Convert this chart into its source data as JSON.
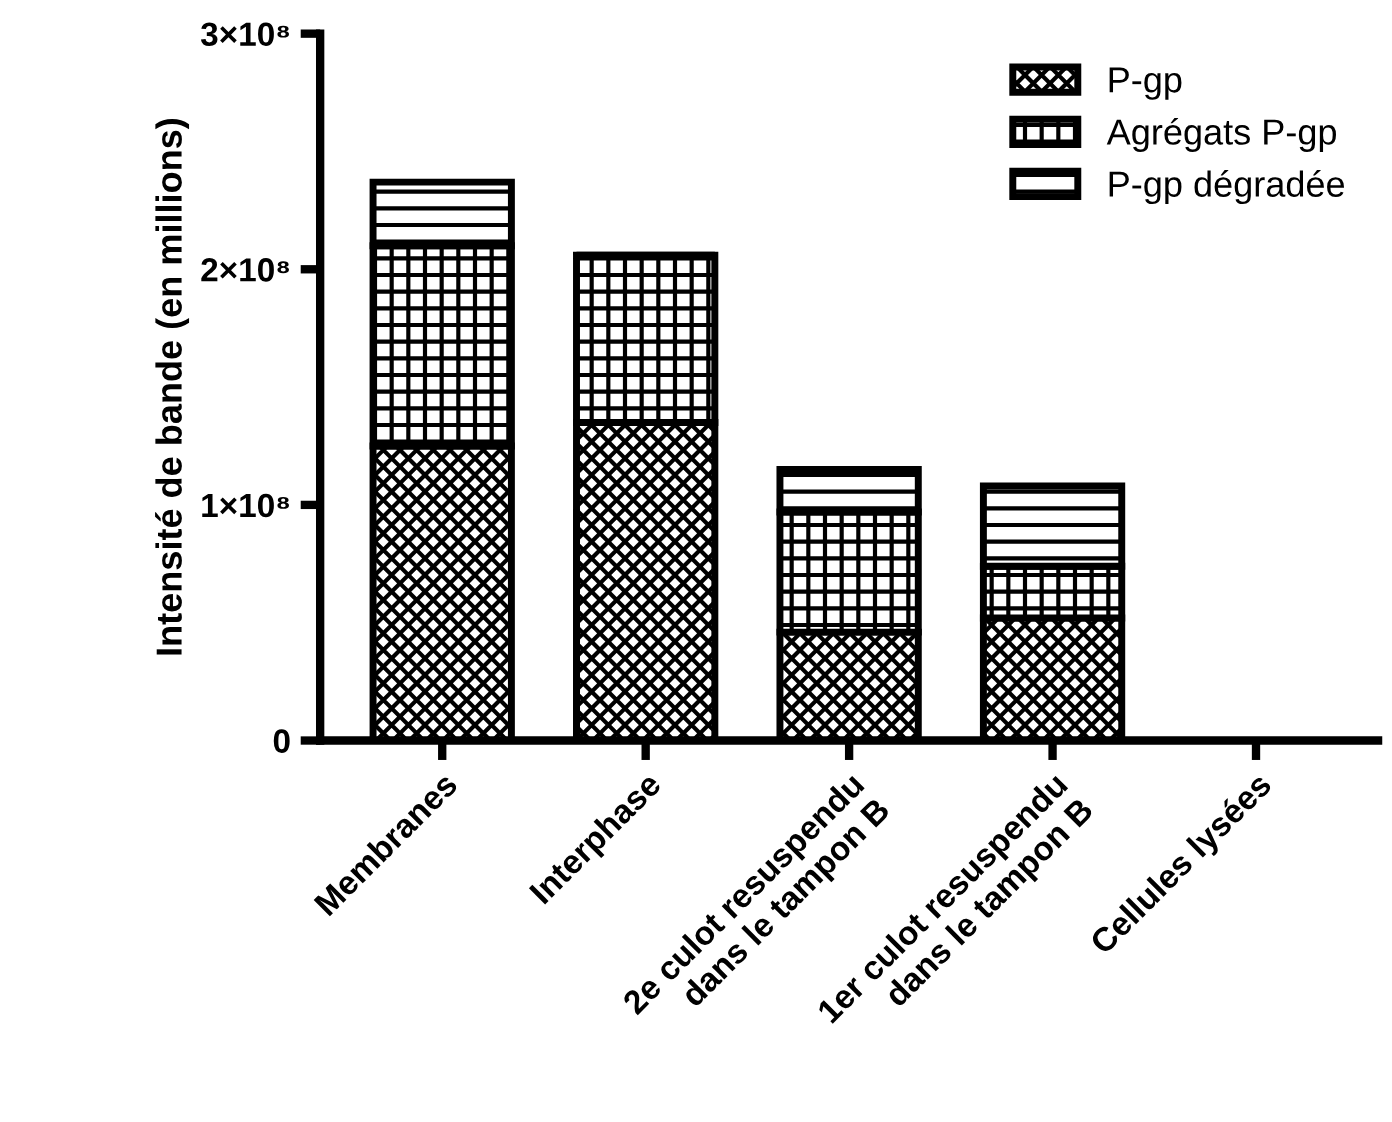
{
  "chart_data": {
    "type": "bar",
    "stacked": true,
    "ylabel": "Intensité de bande (en millions)",
    "categories": [
      "Membranes",
      "Interphase",
      "2e culot resuspendu\ndans le tampon B",
      "1er culot resuspendu\ndans le tampon B",
      "Cellules lysées"
    ],
    "series": [
      {
        "name": "P-gp",
        "color": "#000000",
        "values": [
          125000000.0,
          135000000.0,
          46000000.0,
          52000000.0,
          0
        ]
      },
      {
        "name": "Agrégats P-gp",
        "color": "#000000",
        "values": [
          85000000.0,
          71000000.0,
          51000000.0,
          22000000.0,
          0
        ]
      },
      {
        "name": "P-gp dégradée",
        "color": "#000000",
        "values": [
          27000000.0,
          0,
          18000000.0,
          34000000.0,
          0
        ]
      }
    ],
    "ylim": [
      0,
      300000000.0
    ],
    "yticks": [
      0,
      {
        "value": 100000000.0,
        "label": "1×10⁸"
      },
      {
        "value": 200000000.0,
        "label": "2×10⁸"
      },
      {
        "value": 300000000.0,
        "label": "3×10⁸"
      }
    ],
    "grid": false,
    "legend": "top right"
  }
}
